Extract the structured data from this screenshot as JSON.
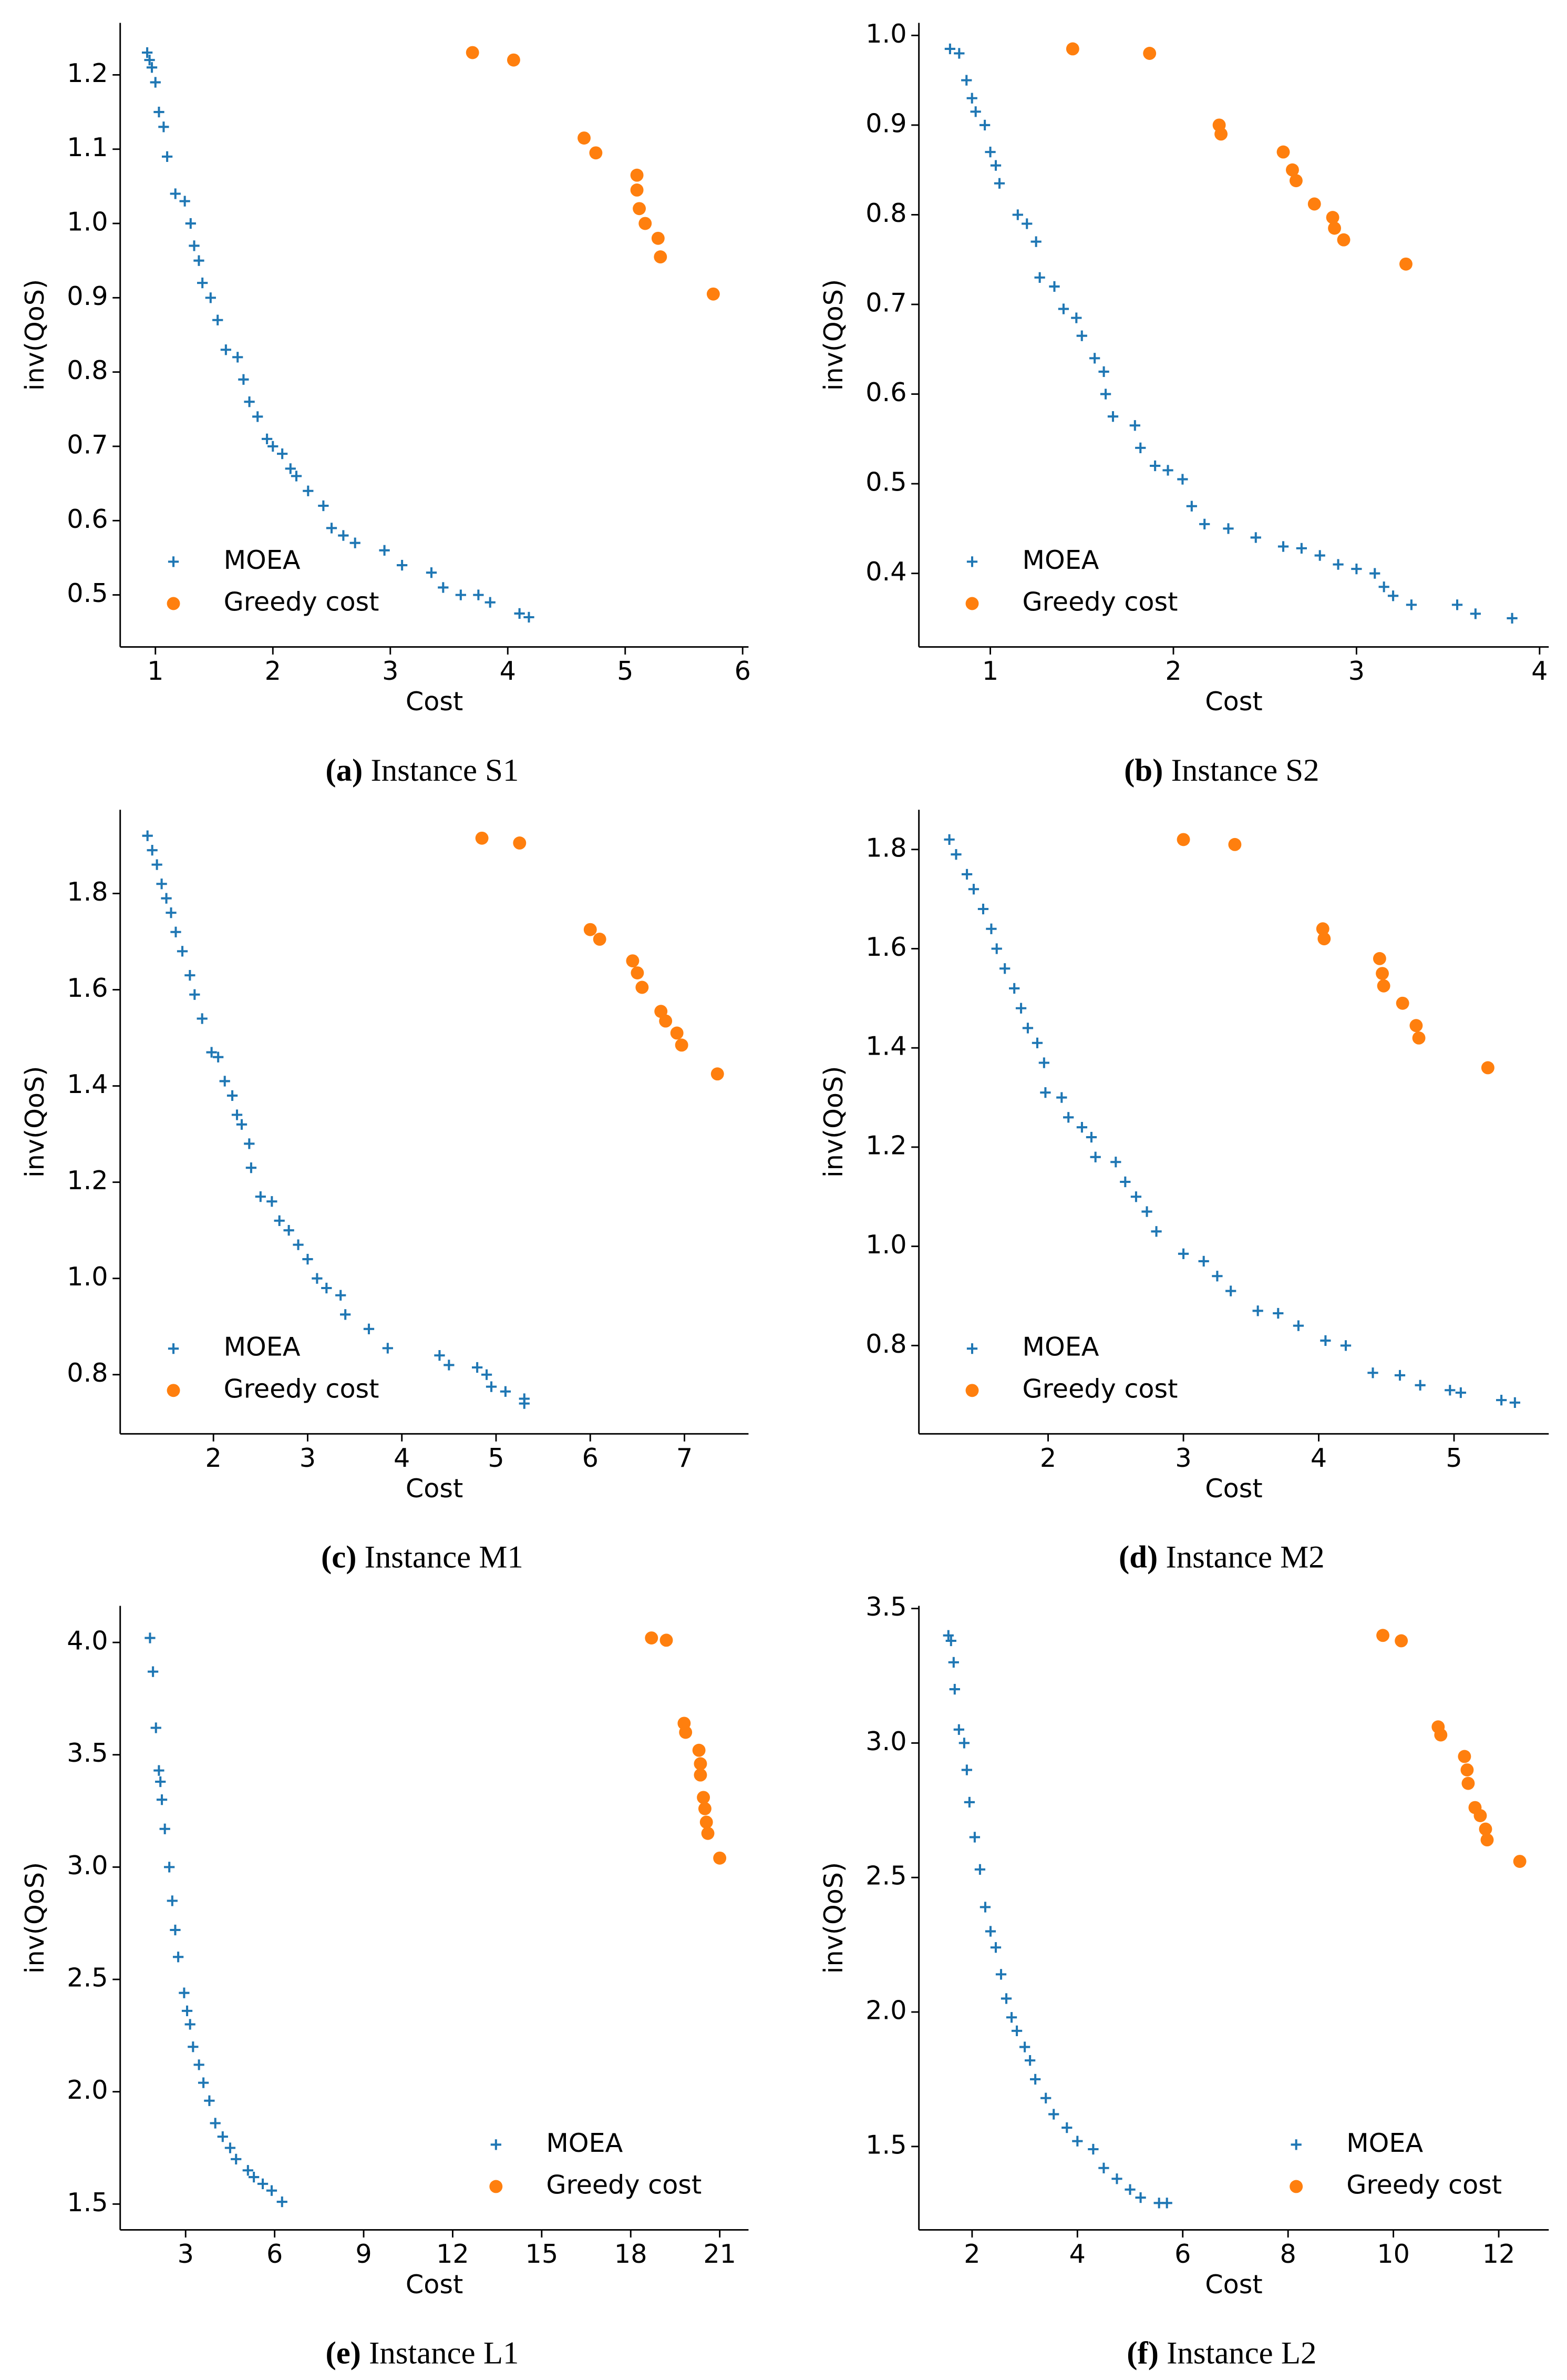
{
  "chart_data": [
    {
      "type": "scatter",
      "caption_label": "(a)",
      "caption": "Instance S1",
      "xlabel": "Cost",
      "ylabel": "inv(QoS)",
      "legend": "lower left",
      "xlim": [
        0.7,
        6.05
      ],
      "ylim": [
        0.43,
        1.27
      ],
      "xticks": [
        1,
        2,
        3,
        4,
        5,
        6
      ],
      "yticks": [
        0.5,
        0.6,
        0.7,
        0.8,
        0.9,
        {
          "value": 1,
          "label": "1.0"
        },
        1.1,
        1.2
      ],
      "series": [
        {
          "name": "MOEA",
          "color": "#1f77b4",
          "marker": "+",
          "x": [
            0.93,
            0.95,
            0.97,
            1.0,
            1.03,
            1.07,
            1.1,
            1.17,
            1.25,
            1.3,
            1.33,
            1.37,
            1.4,
            1.47,
            1.53,
            1.6,
            1.7,
            1.75,
            1.8,
            1.87,
            1.95,
            2.0,
            2.08,
            2.15,
            2.2,
            2.3,
            2.43,
            2.5,
            2.6,
            2.7,
            2.95,
            3.1,
            3.35,
            3.45,
            3.6,
            3.75,
            3.85,
            4.1,
            4.18
          ],
          "values": [
            1.23,
            1.22,
            1.21,
            1.19,
            1.15,
            1.13,
            1.09,
            1.04,
            1.03,
            1.0,
            0.97,
            0.95,
            0.92,
            0.9,
            0.87,
            0.83,
            0.82,
            0.79,
            0.76,
            0.74,
            0.71,
            0.7,
            0.69,
            0.67,
            0.66,
            0.64,
            0.62,
            0.59,
            0.58,
            0.57,
            0.56,
            0.54,
            0.53,
            0.51,
            0.5,
            0.5,
            0.49,
            0.475,
            0.47
          ]
        },
        {
          "name": "Greedy cost",
          "color": "#ff7f0e",
          "marker": "o",
          "x": [
            3.7,
            4.05,
            4.65,
            4.75,
            5.1,
            5.1,
            5.12,
            5.17,
            5.28,
            5.3,
            5.75
          ],
          "values": [
            1.23,
            1.22,
            1.115,
            1.095,
            1.065,
            1.045,
            1.02,
            1.0,
            0.98,
            0.955,
            0.905
          ]
        }
      ]
    },
    {
      "type": "scatter",
      "caption_label": "(b)",
      "caption": "Instance S2",
      "xlabel": "Cost",
      "ylabel": "inv(QoS)",
      "legend": "lower left",
      "xlim": [
        0.61,
        4.05
      ],
      "ylim": [
        0.318,
        1.014
      ],
      "xticks": [
        1,
        2,
        3,
        4
      ],
      "yticks": [
        0.4,
        0.5,
        0.6,
        0.7,
        0.8,
        0.9,
        {
          "value": 1,
          "label": "1.0"
        }
      ],
      "series": [
        {
          "name": "MOEA",
          "color": "#1f77b4",
          "marker": "+",
          "x": [
            0.78,
            0.83,
            0.87,
            0.9,
            0.92,
            0.97,
            1.0,
            1.03,
            1.05,
            1.15,
            1.2,
            1.25,
            1.27,
            1.35,
            1.4,
            1.47,
            1.5,
            1.57,
            1.62,
            1.63,
            1.67,
            1.79,
            1.82,
            1.9,
            1.97,
            2.05,
            2.1,
            2.17,
            2.3,
            2.45,
            2.6,
            2.7,
            2.8,
            2.9,
            3.0,
            3.1,
            3.15,
            3.2,
            3.3,
            3.55,
            3.65,
            3.85
          ],
          "values": [
            0.985,
            0.98,
            0.95,
            0.93,
            0.915,
            0.9,
            0.87,
            0.855,
            0.835,
            0.8,
            0.79,
            0.77,
            0.73,
            0.72,
            0.695,
            0.685,
            0.665,
            0.64,
            0.625,
            0.6,
            0.575,
            0.565,
            0.54,
            0.52,
            0.515,
            0.505,
            0.475,
            0.455,
            0.45,
            0.44,
            0.43,
            0.428,
            0.42,
            0.41,
            0.405,
            0.4,
            0.385,
            0.375,
            0.365,
            0.365,
            0.355,
            0.35
          ]
        },
        {
          "name": "Greedy cost",
          "color": "#ff7f0e",
          "marker": "o",
          "x": [
            1.45,
            1.87,
            2.25,
            2.26,
            2.6,
            2.65,
            2.67,
            2.77,
            2.87,
            2.88,
            2.93,
            3.27
          ],
          "values": [
            0.985,
            0.98,
            0.9,
            0.89,
            0.87,
            0.85,
            0.838,
            0.812,
            0.797,
            0.785,
            0.772,
            0.745
          ]
        }
      ]
    },
    {
      "type": "scatter",
      "caption_label": "(c)",
      "caption": "Instance M1",
      "xlabel": "Cost",
      "ylabel": "inv(QoS)",
      "legend": "lower left",
      "xlim": [
        1.01,
        7.68
      ],
      "ylim": [
        0.677,
        1.974
      ],
      "xticks": [
        2,
        3,
        4,
        5,
        6,
        7
      ],
      "yticks": [
        0.8,
        {
          "value": 1,
          "label": "1.0"
        },
        1.2,
        1.4,
        1.6,
        1.8
      ],
      "series": [
        {
          "name": "MOEA",
          "color": "#1f77b4",
          "marker": "+",
          "x": [
            1.3,
            1.35,
            1.4,
            1.45,
            1.5,
            1.55,
            1.6,
            1.67,
            1.75,
            1.8,
            1.88,
            1.98,
            2.05,
            2.12,
            2.2,
            2.25,
            2.3,
            2.38,
            2.4,
            2.5,
            2.62,
            2.7,
            2.8,
            2.9,
            3.0,
            3.1,
            3.2,
            3.35,
            3.4,
            3.65,
            3.85,
            4.4,
            4.5,
            4.8,
            4.9,
            4.95,
            5.1,
            5.3,
            5.3
          ],
          "values": [
            1.92,
            1.89,
            1.86,
            1.82,
            1.79,
            1.76,
            1.72,
            1.68,
            1.63,
            1.59,
            1.54,
            1.47,
            1.46,
            1.41,
            1.38,
            1.34,
            1.32,
            1.28,
            1.23,
            1.17,
            1.16,
            1.12,
            1.1,
            1.07,
            1.04,
            1.0,
            0.98,
            0.965,
            0.925,
            0.895,
            0.855,
            0.84,
            0.82,
            0.815,
            0.8,
            0.775,
            0.765,
            0.75,
            0.74
          ]
        },
        {
          "name": "Greedy cost",
          "color": "#ff7f0e",
          "marker": "o",
          "x": [
            4.85,
            5.25,
            6.0,
            6.1,
            6.45,
            6.5,
            6.55,
            6.75,
            6.8,
            6.92,
            6.97,
            7.35
          ],
          "values": [
            1.915,
            1.905,
            1.725,
            1.705,
            1.66,
            1.635,
            1.605,
            1.555,
            1.535,
            1.51,
            1.485,
            1.425
          ]
        }
      ]
    },
    {
      "type": "scatter",
      "caption_label": "(d)",
      "caption": "Instance M2",
      "xlabel": "Cost",
      "ylabel": "inv(QoS)",
      "legend": "lower left",
      "xlim": [
        1.045,
        5.7
      ],
      "ylim": [
        0.622,
        1.88
      ],
      "xticks": [
        2,
        3,
        4,
        5
      ],
      "yticks": [
        0.8,
        {
          "value": 1,
          "label": "1.0"
        },
        1.2,
        1.4,
        1.6,
        1.8
      ],
      "series": [
        {
          "name": "MOEA",
          "color": "#1f77b4",
          "marker": "+",
          "x": [
            1.27,
            1.32,
            1.4,
            1.45,
            1.52,
            1.58,
            1.62,
            1.68,
            1.75,
            1.8,
            1.85,
            1.92,
            1.97,
            1.98,
            2.1,
            2.15,
            2.25,
            2.32,
            2.35,
            2.5,
            2.57,
            2.65,
            2.73,
            2.8,
            3.0,
            3.15,
            3.25,
            3.35,
            3.55,
            3.7,
            3.85,
            4.05,
            4.2,
            4.4,
            4.6,
            4.75,
            4.97,
            5.05,
            5.35,
            5.45
          ],
          "values": [
            1.82,
            1.79,
            1.75,
            1.72,
            1.68,
            1.64,
            1.6,
            1.56,
            1.52,
            1.48,
            1.44,
            1.41,
            1.37,
            1.31,
            1.3,
            1.26,
            1.24,
            1.22,
            1.18,
            1.17,
            1.13,
            1.1,
            1.07,
            1.03,
            0.985,
            0.97,
            0.94,
            0.91,
            0.87,
            0.865,
            0.84,
            0.81,
            0.8,
            0.745,
            0.74,
            0.72,
            0.71,
            0.705,
            0.69,
            0.685
          ]
        },
        {
          "name": "Greedy cost",
          "color": "#ff7f0e",
          "marker": "o",
          "x": [
            3.0,
            3.38,
            4.03,
            4.04,
            4.45,
            4.47,
            4.48,
            4.62,
            4.72,
            4.74,
            5.25
          ],
          "values": [
            1.82,
            1.81,
            1.64,
            1.62,
            1.58,
            1.55,
            1.525,
            1.49,
            1.445,
            1.42,
            1.36
          ]
        }
      ]
    },
    {
      "type": "scatter",
      "caption_label": "(e)",
      "caption": "Instance L1",
      "xlabel": "Cost",
      "ylabel": "inv(QoS)",
      "legend": "lower right",
      "xlim": [
        0.795,
        21.97
      ],
      "ylim": [
        1.385,
        4.163
      ],
      "xticks": [
        3,
        6,
        9,
        12,
        15,
        18,
        21
      ],
      "yticks": [
        1.5,
        {
          "value": 2,
          "label": "2.0"
        },
        2.5,
        {
          "value": 3,
          "label": "3.0"
        },
        3.5,
        {
          "value": 4,
          "label": "4.0"
        }
      ],
      "series": [
        {
          "name": "MOEA",
          "color": "#1f77b4",
          "marker": "+",
          "x": [
            1.8,
            1.9,
            2.0,
            2.1,
            2.15,
            2.2,
            2.3,
            2.45,
            2.55,
            2.65,
            2.75,
            2.95,
            3.05,
            3.15,
            3.25,
            3.45,
            3.6,
            3.8,
            4.0,
            4.25,
            4.5,
            4.7,
            5.1,
            5.3,
            5.6,
            5.9,
            6.25
          ],
          "values": [
            4.02,
            3.87,
            3.62,
            3.43,
            3.38,
            3.3,
            3.17,
            3.0,
            2.85,
            2.72,
            2.6,
            2.44,
            2.36,
            2.3,
            2.2,
            2.12,
            2.04,
            1.96,
            1.86,
            1.8,
            1.75,
            1.7,
            1.65,
            1.62,
            1.59,
            1.56,
            1.51
          ]
        },
        {
          "name": "Greedy cost",
          "color": "#ff7f0e",
          "marker": "o",
          "x": [
            18.7,
            19.2,
            19.8,
            19.85,
            20.3,
            20.35,
            20.35,
            20.45,
            20.5,
            20.55,
            20.6,
            21.0
          ],
          "values": [
            4.02,
            4.01,
            3.64,
            3.6,
            3.52,
            3.46,
            3.41,
            3.31,
            3.26,
            3.2,
            3.15,
            3.04
          ]
        }
      ]
    },
    {
      "type": "scatter",
      "caption_label": "(f)",
      "caption": "Instance L2",
      "xlabel": "Cost",
      "ylabel": "inv(QoS)",
      "legend": "lower right",
      "xlim": [
        0.99,
        12.95
      ],
      "ylim": [
        1.19,
        3.51
      ],
      "xticks": [
        2,
        4,
        6,
        8,
        10,
        12
      ],
      "yticks": [
        1.5,
        {
          "value": 2,
          "label": "2.0"
        },
        2.5,
        {
          "value": 3,
          "label": "3.0"
        },
        3.5
      ],
      "series": [
        {
          "name": "MOEA",
          "color": "#1f77b4",
          "marker": "+",
          "x": [
            1.55,
            1.6,
            1.65,
            1.67,
            1.75,
            1.85,
            1.9,
            1.95,
            2.05,
            2.15,
            2.25,
            2.35,
            2.45,
            2.55,
            2.65,
            2.75,
            2.85,
            3.0,
            3.1,
            3.2,
            3.4,
            3.55,
            3.8,
            4.0,
            4.3,
            4.5,
            4.75,
            5.0,
            5.2,
            5.55,
            5.7
          ],
          "values": [
            3.4,
            3.38,
            3.3,
            3.2,
            3.05,
            3.0,
            2.9,
            2.78,
            2.65,
            2.53,
            2.39,
            2.3,
            2.24,
            2.14,
            2.05,
            1.98,
            1.93,
            1.87,
            1.82,
            1.75,
            1.68,
            1.62,
            1.57,
            1.52,
            1.49,
            1.42,
            1.38,
            1.34,
            1.31,
            1.29,
            1.29
          ]
        },
        {
          "name": "Greedy cost",
          "color": "#ff7f0e",
          "marker": "o",
          "x": [
            9.8,
            10.15,
            10.85,
            10.9,
            11.35,
            11.4,
            11.42,
            11.55,
            11.65,
            11.75,
            11.78,
            12.4
          ],
          "values": [
            3.4,
            3.38,
            3.06,
            3.03,
            2.95,
            2.9,
            2.85,
            2.76,
            2.73,
            2.68,
            2.64,
            2.56
          ]
        }
      ]
    }
  ]
}
